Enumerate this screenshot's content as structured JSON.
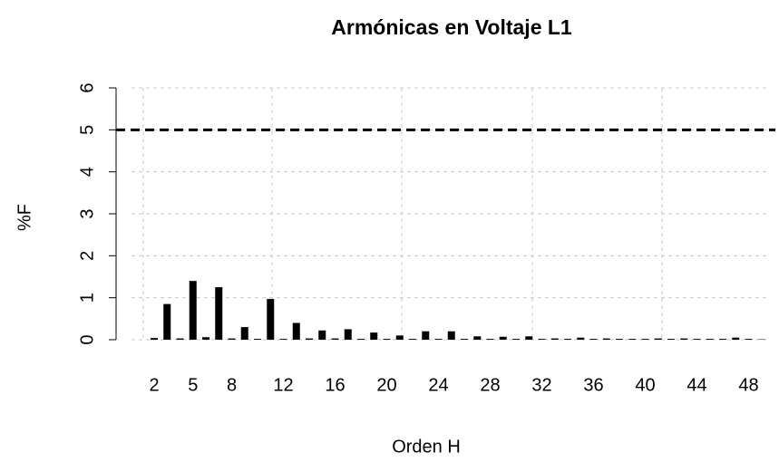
{
  "chart_data": {
    "type": "bar",
    "title": "Armónicas en Voltaje L1",
    "x_label": "Orden H",
    "y_label": "%F",
    "categories": [
      "2",
      null,
      null,
      "5",
      null,
      null,
      "8",
      null,
      null,
      null,
      "12",
      null,
      null,
      null,
      "16",
      null,
      null,
      null,
      "20",
      null,
      null,
      null,
      "24",
      null,
      null,
      null,
      "28",
      null,
      null,
      null,
      "32",
      null,
      null,
      null,
      "36",
      null,
      null,
      null,
      "40",
      null,
      null,
      null,
      "44",
      null,
      null,
      null,
      "48",
      null
    ],
    "values": [
      0.04,
      0.85,
      0.03,
      1.4,
      0.06,
      1.25,
      0.03,
      0.3,
      0.02,
      0.97,
      0.02,
      0.4,
      0.03,
      0.22,
      0.03,
      0.25,
      0.02,
      0.17,
      0.02,
      0.1,
      0.02,
      0.2,
      0.02,
      0.2,
      0.02,
      0.08,
      0.02,
      0.07,
      0.02,
      0.08,
      0.02,
      0.03,
      0.02,
      0.05,
      0.02,
      0.03,
      0.02,
      0.02,
      0.02,
      0.03,
      0.02,
      0.03,
      0.02,
      0.02,
      0.02,
      0.05,
      0.02,
      0.01
    ],
    "color": "#000000",
    "threshold": 5,
    "threshold_color": "#000000",
    "ylim": [
      0,
      6
    ],
    "yticks": [
      0,
      1,
      2,
      3,
      4,
      5,
      6
    ],
    "grid": true
  }
}
